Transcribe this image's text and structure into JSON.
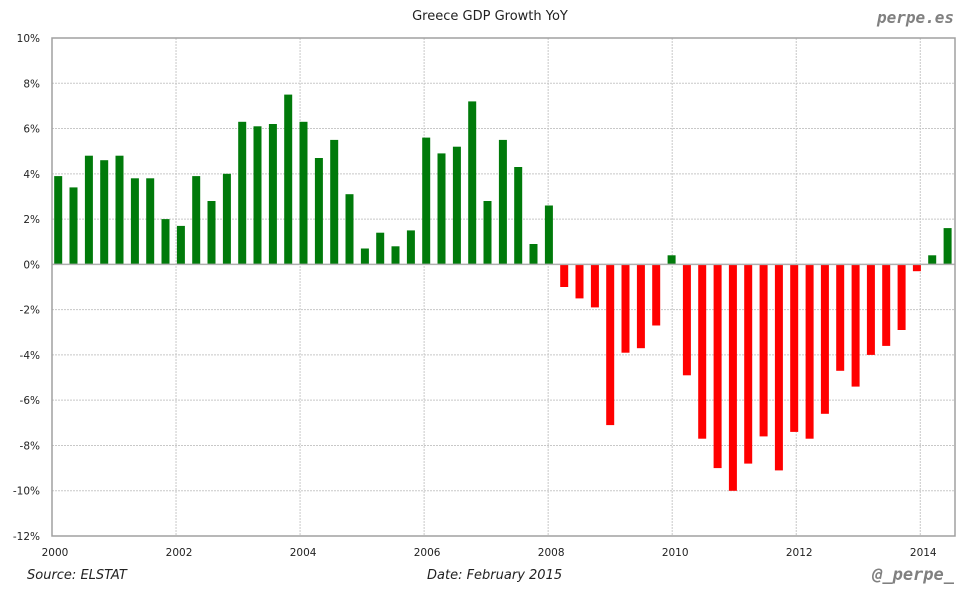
{
  "header": {
    "title": "Greece GDP Growth YoY",
    "brand": "perpe.es"
  },
  "footer": {
    "source": "Source: ELSTAT",
    "date": "Date: February 2015",
    "handle": "@_perpe_"
  },
  "colors": {
    "positive": "#007a0a",
    "negative": "#ff0000",
    "grid": "#c8c8c8",
    "border": "#a0a0a0"
  },
  "chart_data": {
    "type": "bar",
    "title": "Greece GDP Growth YoY",
    "xlabel": "",
    "ylabel": "",
    "ylim": [
      -12,
      10
    ],
    "xlim": [
      2000,
      2014.56
    ],
    "grid": true,
    "y_ticks": [
      10,
      8,
      6,
      4,
      2,
      0,
      -2,
      -4,
      -6,
      -8,
      -10,
      -12
    ],
    "y_tick_labels": [
      "10%",
      "8%",
      "6%",
      "4%",
      "2%",
      "0%",
      "-2%",
      "-4%",
      "-6%",
      "-8%",
      "-10%",
      "-12%"
    ],
    "x_ticks": [
      2000,
      2002,
      2004,
      2006,
      2008,
      2010,
      2012,
      2014
    ],
    "x_tick_labels": [
      "2000",
      "2002",
      "2004",
      "2006",
      "2008",
      "2010",
      "2012",
      "2014"
    ],
    "categories": [
      "2000Q1",
      "2000Q2",
      "2000Q3",
      "2000Q4",
      "2001Q1",
      "2001Q2",
      "2001Q3",
      "2001Q4",
      "2002Q1",
      "2002Q2",
      "2002Q3",
      "2002Q4",
      "2003Q1",
      "2003Q2",
      "2003Q3",
      "2003Q4",
      "2004Q1",
      "2004Q2",
      "2004Q3",
      "2004Q4",
      "2005Q1",
      "2005Q2",
      "2005Q3",
      "2005Q4",
      "2006Q1",
      "2006Q2",
      "2006Q3",
      "2006Q4",
      "2007Q1",
      "2007Q2",
      "2007Q3",
      "2007Q4",
      "2008Q1",
      "2008Q2",
      "2008Q3",
      "2008Q4",
      "2009Q1",
      "2009Q2",
      "2009Q3",
      "2009Q4",
      "2010Q1",
      "2010Q2",
      "2010Q3",
      "2010Q4",
      "2011Q1",
      "2011Q2",
      "2011Q3",
      "2011Q4",
      "2012Q1",
      "2012Q2",
      "2012Q3",
      "2012Q4",
      "2013Q1",
      "2013Q2",
      "2013Q3",
      "2013Q4",
      "2014Q1",
      "2014Q2",
      "2014Q3"
    ],
    "series": [
      {
        "name": "GDP Growth YoY (%)",
        "values": [
          3.9,
          3.4,
          4.8,
          4.6,
          4.8,
          3.8,
          3.8,
          2.0,
          1.7,
          3.9,
          2.8,
          4.0,
          6.3,
          6.1,
          6.2,
          7.5,
          6.3,
          4.7,
          5.5,
          3.1,
          0.7,
          1.4,
          0.8,
          1.5,
          5.6,
          4.9,
          5.2,
          7.2,
          2.8,
          5.5,
          4.3,
          0.9,
          2.6,
          -1.0,
          -1.5,
          -1.9,
          -7.1,
          -3.9,
          -3.7,
          -2.7,
          0.4,
          -4.9,
          -7.7,
          -9.0,
          -10.0,
          -8.8,
          -7.6,
          -9.1,
          -7.4,
          -7.7,
          -6.6,
          -4.7,
          -5.4,
          -4.0,
          -3.6,
          -2.9,
          -0.3,
          0.4,
          1.6
        ]
      }
    ]
  }
}
